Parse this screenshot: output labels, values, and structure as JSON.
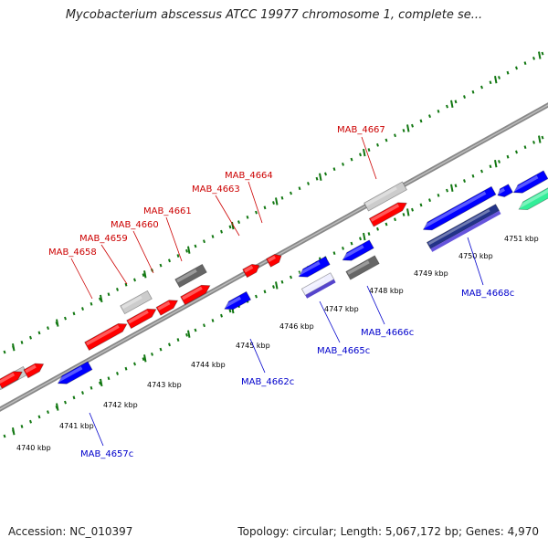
{
  "title": "Mycobacterium abscessus ATCC 19977 chromosome 1, complete se...",
  "footer": {
    "accession": "Accession: NC_010397",
    "summary": "Topology: circular; Length: 5,067,172 bp; Genes: 4,970"
  },
  "colors": {
    "forward_gene": "#ff0000",
    "reverse_gene": "#0000ff",
    "pseudo_gene": "#cccccc",
    "dark_gene": "#666666",
    "rna_gene": "#33ee99",
    "backbone": "#888888",
    "tick": "#117711"
  },
  "tick_labels": [
    {
      "name": "4740 kbp",
      "text": "4740 kbp"
    },
    {
      "name": "4741 kbp",
      "text": "4741 kbp"
    },
    {
      "name": "4742 kbp",
      "text": "4742 kbp"
    },
    {
      "name": "4743 kbp",
      "text": "4743 kbp"
    },
    {
      "name": "4744 kbp",
      "text": "4744 kbp"
    },
    {
      "name": "4745 kbp",
      "text": "4745 kbp"
    },
    {
      "name": "4746 kbp",
      "text": "4746 kbp"
    },
    {
      "name": "4747 kbp",
      "text": "4747 kbp"
    },
    {
      "name": "4748 kbp",
      "text": "4748 kbp"
    },
    {
      "name": "4749 kbp",
      "text": "4749 kbp"
    },
    {
      "name": "4750 kbp",
      "text": "4750 kbp"
    },
    {
      "name": "4751 kbp",
      "text": "4751 kbp"
    }
  ],
  "forward_labels": [
    {
      "name": "MAB_4658",
      "text": "MAB_4658"
    },
    {
      "name": "MAB_4659",
      "text": "MAB_4659"
    },
    {
      "name": "MAB_4660",
      "text": "MAB_4660"
    },
    {
      "name": "MAB_4661",
      "text": "MAB_4661"
    },
    {
      "name": "MAB_4663",
      "text": "MAB_4663"
    },
    {
      "name": "MAB_4664",
      "text": "MAB_4664"
    },
    {
      "name": "MAB_4667",
      "text": "MAB_4667"
    }
  ],
  "reverse_labels": [
    {
      "name": "MAB_4657c",
      "text": "MAB_4657c"
    },
    {
      "name": "MAB_4662c",
      "text": "MAB_4662c"
    },
    {
      "name": "MAB_4665c",
      "text": "MAB_4665c"
    },
    {
      "name": "MAB_4666c",
      "text": "MAB_4666c"
    },
    {
      "name": "MAB_4668c",
      "text": "MAB_4668c"
    }
  ]
}
